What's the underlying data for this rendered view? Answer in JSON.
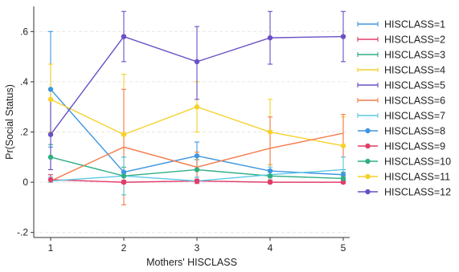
{
  "chart_data": {
    "type": "line",
    "title": "",
    "xlabel": "Mothers' HISCLASS",
    "ylabel": "Pr(Social Status)",
    "xlim": [
      1,
      5
    ],
    "ylim": [
      -0.22,
      0.7
    ],
    "x_ticks": [
      1,
      2,
      3,
      4,
      5
    ],
    "x_tick_labels": [
      "1",
      "2",
      "3",
      "4",
      "5"
    ],
    "y_ticks": [
      -0.2,
      0,
      0.2,
      0.4,
      0.6
    ],
    "y_tick_labels": [
      "-.2",
      "0",
      ".2",
      ".4",
      ".6"
    ],
    "grid": "horizontal dashed",
    "legend_position": "right",
    "x": [
      1,
      2,
      3,
      4,
      5
    ],
    "series": [
      {
        "name": "HISCLASS=1",
        "color": "#3f96e0",
        "marker": "line",
        "values": [
          0.37,
          0.04,
          0.105,
          0.045,
          0.03
        ],
        "ci_low": [
          0.14,
          0.0,
          0.05,
          0.02,
          0.01
        ],
        "ci_high": [
          0.6,
          0.1,
          0.16,
          0.07,
          0.05
        ]
      },
      {
        "name": "HISCLASS=2",
        "color": "#e23c69",
        "marker": "line",
        "values": [
          0.01,
          0.0,
          0.005,
          0.0,
          0.0
        ],
        "ci_low": [
          0.0,
          -0.005,
          -0.005,
          -0.005,
          -0.005
        ],
        "ci_high": [
          0.03,
          0.008,
          0.012,
          0.006,
          0.006
        ]
      },
      {
        "name": "HISCLASS=3",
        "color": "#2fae84",
        "marker": "line",
        "values": [
          0.1,
          0.025,
          0.05,
          0.025,
          0.015
        ],
        "ci_low": [
          0.05,
          0.0,
          0.02,
          0.005,
          0.0
        ],
        "ci_high": [
          0.15,
          0.06,
          0.09,
          0.05,
          0.04
        ]
      },
      {
        "name": "HISCLASS=4",
        "color": "#f6d12a",
        "marker": "line",
        "values": [
          0.33,
          0.19,
          0.3,
          0.2,
          0.145
        ],
        "ci_low": [
          0.2,
          -0.05,
          0.2,
          0.07,
          0.02
        ],
        "ci_high": [
          0.47,
          0.43,
          0.4,
          0.33,
          0.26
        ]
      },
      {
        "name": "HISCLASS=5",
        "color": "#6a4fc6",
        "marker": "line",
        "values": [
          0.19,
          0.58,
          0.48,
          0.575,
          0.58
        ],
        "ci_low": [
          0.05,
          0.48,
          0.33,
          0.47,
          0.48
        ],
        "ci_high": [
          0.33,
          0.68,
          0.62,
          0.68,
          0.68
        ]
      },
      {
        "name": "HISCLASS=6",
        "color": "#f47c4d",
        "marker": "line",
        "values": [
          0.005,
          0.14,
          0.06,
          0.135,
          0.195
        ],
        "ci_low": [
          0.0,
          -0.09,
          0.0,
          0.01,
          0.1
        ],
        "ci_high": [
          0.02,
          0.37,
          0.12,
          0.26,
          0.27
        ]
      },
      {
        "name": "HISCLASS=7",
        "color": "#5cc8e6",
        "marker": "line",
        "values": [
          0.005,
          0.025,
          0.005,
          0.03,
          0.05
        ],
        "ci_low": [
          0.0,
          -0.05,
          0.0,
          0.0,
          0.0
        ],
        "ci_high": [
          0.02,
          0.1,
          0.02,
          0.06,
          0.1
        ]
      },
      {
        "name": "HISCLASS=8",
        "color": "#3f96e0",
        "marker": "dot",
        "values": [
          0.37,
          0.04,
          0.105,
          0.045,
          0.03
        ]
      },
      {
        "name": "HISCLASS=9",
        "color": "#e23c69",
        "marker": "dot",
        "values": [
          0.01,
          0.0,
          0.005,
          0.0,
          0.0
        ]
      },
      {
        "name": "HISCLASS=10",
        "color": "#2fae84",
        "marker": "dot",
        "values": [
          0.1,
          0.025,
          0.05,
          0.025,
          0.015
        ]
      },
      {
        "name": "HISCLASS=11",
        "color": "#f6d12a",
        "marker": "dot",
        "values": [
          0.33,
          0.19,
          0.3,
          0.2,
          0.145
        ]
      },
      {
        "name": "HISCLASS=12",
        "color": "#6a4fc6",
        "marker": "dot",
        "values": [
          0.19,
          0.58,
          0.48,
          0.575,
          0.58
        ]
      }
    ]
  }
}
